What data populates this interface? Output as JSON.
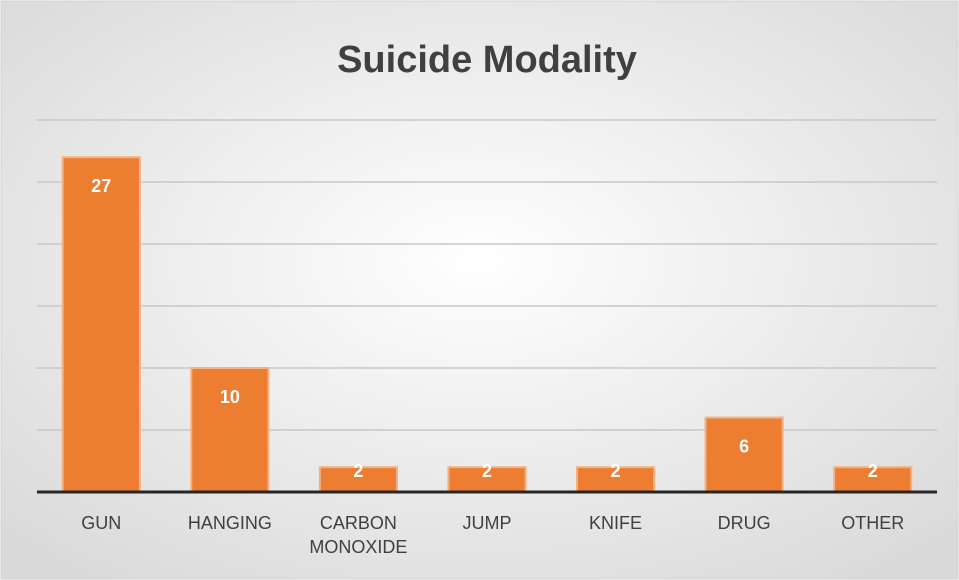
{
  "chart_data": {
    "type": "bar",
    "title": "Suicide Modality",
    "categories": [
      "GUN",
      "HANGING",
      "CARBON MONOXIDE",
      "JUMP",
      "KNIFE",
      "DRUG",
      "OTHER"
    ],
    "values": [
      27,
      10,
      2,
      2,
      2,
      6,
      2
    ],
    "color": "#ed7d31",
    "ylim": [
      0,
      30
    ],
    "yticks": [
      0,
      5,
      10,
      15,
      20,
      25,
      30
    ],
    "grid": true
  }
}
